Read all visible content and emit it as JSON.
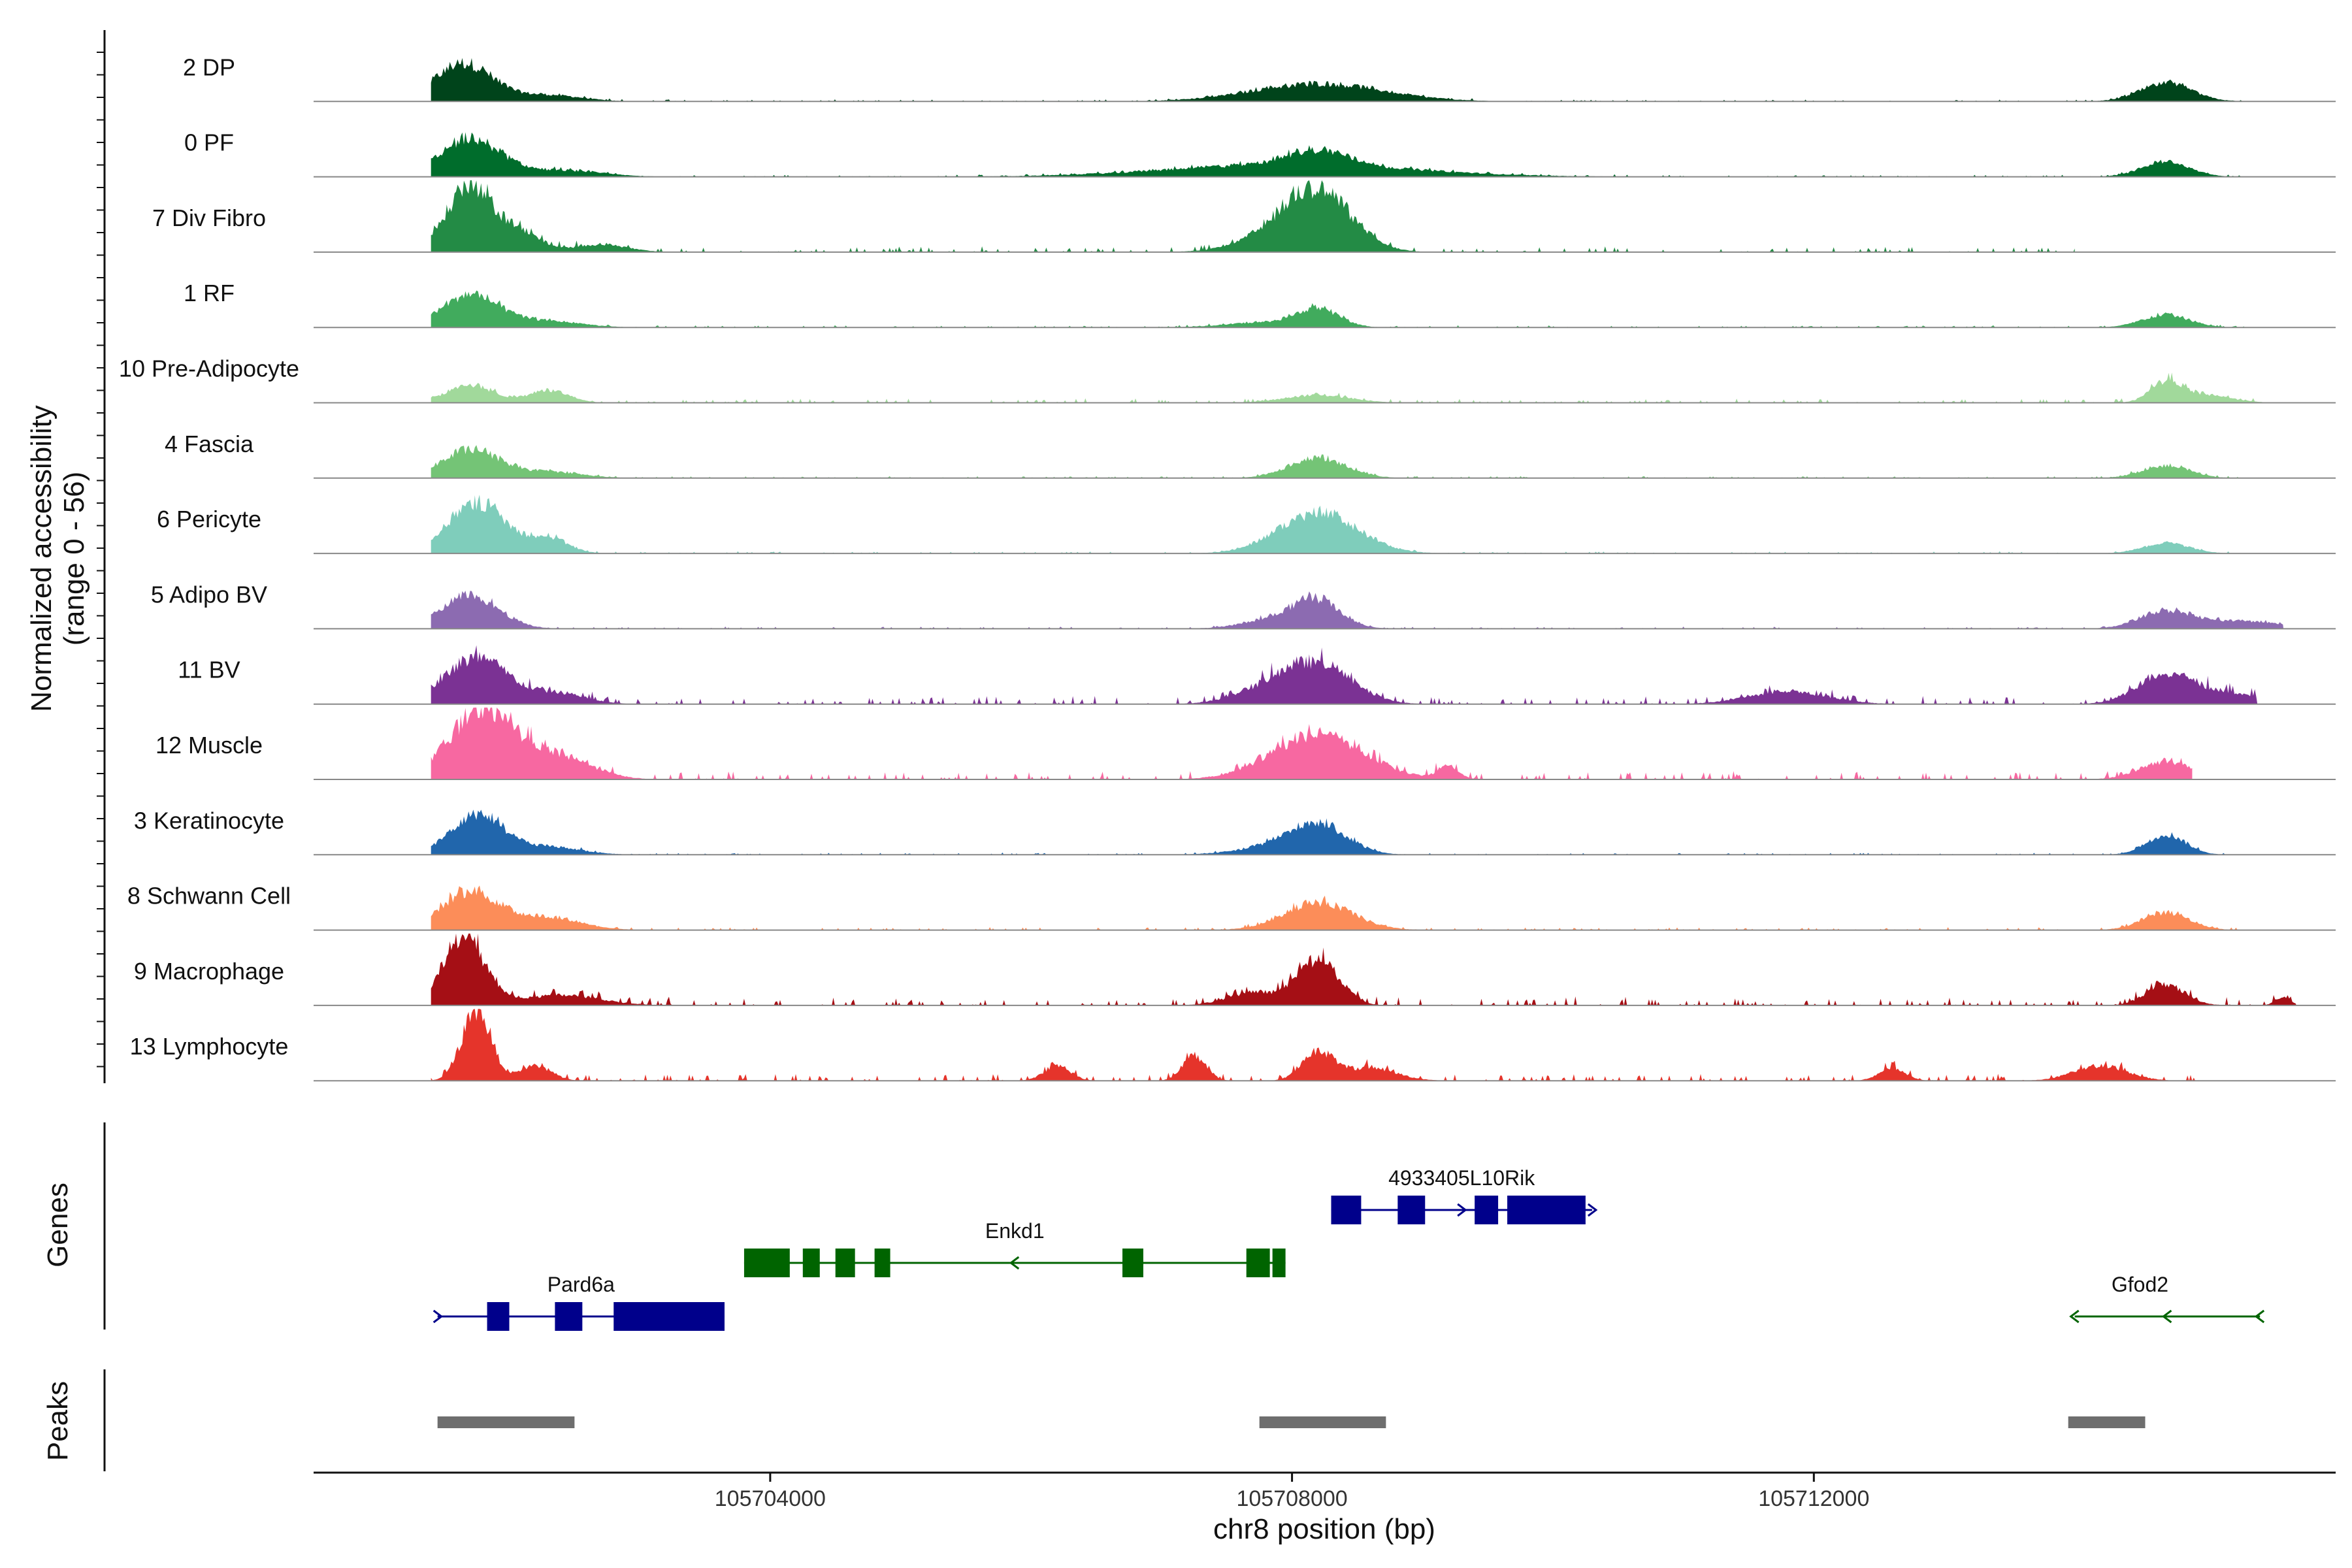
{
  "chart_data": {
    "type": "area",
    "title": "",
    "ylabel_line1": "Normalized accessibility",
    "ylabel_line2": "(range 0 - 56)",
    "y_range": [
      0,
      56
    ],
    "xlabel": "chr8 position (bp)",
    "x_range": [
      105700500,
      105716000
    ],
    "x_ticks": [
      105704000,
      105708000,
      105712000
    ],
    "x_tick_labels": [
      "105704000",
      "105708000",
      "105712000"
    ],
    "tracks": [
      {
        "name": "2 DP",
        "color": "#00441b",
        "peaks": [
          [
            105701650,
            30,
            220
          ],
          [
            105702300,
            5,
            250
          ],
          [
            105708200,
            14,
            500
          ],
          [
            105714700,
            14,
            200
          ]
        ],
        "noise": 1.5,
        "spread": [
          105701400,
          105715300
        ]
      },
      {
        "name": "0 PF",
        "color": "#006d2c",
        "peaks": [
          [
            105701700,
            30,
            230
          ],
          [
            105702400,
            5,
            300
          ],
          [
            105708000,
            10,
            900
          ],
          [
            105708200,
            12,
            220
          ],
          [
            105714700,
            12,
            180
          ]
        ],
        "noise": 1.5,
        "spread": [
          105701400,
          105715400
        ]
      },
      {
        "name": "7 Div Fibro",
        "color": "#238b45",
        "peaks": [
          [
            105701700,
            52,
            180
          ],
          [
            105702100,
            14,
            150
          ],
          [
            105702700,
            6,
            200
          ],
          [
            105708200,
            44,
            260
          ],
          [
            105707900,
            10,
            300
          ]
        ],
        "noise": 4,
        "spread": [
          105701400,
          105714000
        ]
      },
      {
        "name": "1 RF",
        "color": "#41ab5d",
        "peaks": [
          [
            105701700,
            26,
            220
          ],
          [
            105702300,
            5,
            250
          ],
          [
            105708200,
            14,
            160
          ],
          [
            105707800,
            4,
            300
          ],
          [
            105714700,
            10,
            180
          ]
        ],
        "noise": 1.5,
        "spread": [
          105701400,
          105715300
        ]
      },
      {
        "name": "10 Pre-Adipocyte",
        "color": "#a1d99b",
        "peaks": [
          [
            105701700,
            14,
            180
          ],
          [
            105702300,
            10,
            150
          ],
          [
            105708200,
            6,
            250
          ],
          [
            105714700,
            16,
            120
          ],
          [
            105715000,
            6,
            200
          ]
        ],
        "noise": 3,
        "spread": [
          105701400,
          105715600
        ]
      },
      {
        "name": "4 Fascia",
        "color": "#74c476",
        "peaks": [
          [
            105701700,
            22,
            220
          ],
          [
            105702300,
            5,
            250
          ],
          [
            105708200,
            16,
            220
          ],
          [
            105714700,
            10,
            180
          ]
        ],
        "noise": 1.5,
        "spread": [
          105701400,
          105715300
        ]
      },
      {
        "name": "6 Pericyte",
        "color": "#7fcdbb",
        "peaks": [
          [
            105701750,
            40,
            220
          ],
          [
            105702300,
            12,
            150
          ],
          [
            105708200,
            32,
            300
          ],
          [
            105714700,
            8,
            180
          ]
        ],
        "noise": 1.5,
        "spread": [
          105701400,
          105715300
        ]
      },
      {
        "name": "5 Adipo BV",
        "color": "#8c6bb1",
        "peaks": [
          [
            105701700,
            26,
            220
          ],
          [
            105708200,
            20,
            180
          ],
          [
            105707900,
            8,
            250
          ],
          [
            105714700,
            14,
            200
          ],
          [
            105715300,
            6,
            300
          ]
        ],
        "noise": 1.5,
        "spread": [
          105701400,
          105715600
        ]
      },
      {
        "name": "11 BV",
        "color": "#7b3294",
        "peaks": [
          [
            105701750,
            36,
            250
          ],
          [
            105702400,
            8,
            200
          ],
          [
            105708200,
            30,
            260
          ],
          [
            105707800,
            10,
            250
          ],
          [
            105714700,
            22,
            220
          ],
          [
            105715200,
            8,
            250
          ],
          [
            105711800,
            10,
            300
          ]
        ],
        "noise": 6,
        "spread": [
          105701400,
          105715400
        ]
      },
      {
        "name": "12 Muscle",
        "color": "#f768a1",
        "peaks": [
          [
            105701800,
            54,
            260
          ],
          [
            105702400,
            16,
            250
          ],
          [
            105708200,
            36,
            350
          ],
          [
            105709200,
            10,
            80
          ],
          [
            105714700,
            14,
            200
          ]
        ],
        "noise": 6,
        "spread": [
          105701400,
          105714900
        ]
      },
      {
        "name": "3 Keratinocyte",
        "color": "#2166ac",
        "peaks": [
          [
            105701750,
            32,
            200
          ],
          [
            105702300,
            6,
            250
          ],
          [
            105708200,
            22,
            220
          ],
          [
            105707900,
            6,
            300
          ],
          [
            105714700,
            16,
            150
          ]
        ],
        "noise": 1.5,
        "spread": [
          105701400,
          105715300
        ]
      },
      {
        "name": "8 Schwann Cell",
        "color": "#fc8d59",
        "peaks": [
          [
            105701700,
            30,
            220
          ],
          [
            105702300,
            10,
            250
          ],
          [
            105708200,
            22,
            260
          ],
          [
            105714700,
            14,
            180
          ]
        ],
        "noise": 2,
        "spread": [
          105701400,
          105715300
        ]
      },
      {
        "name": "9 Macrophage",
        "color": "#a50f15",
        "peaks": [
          [
            105701650,
            54,
            160
          ],
          [
            105702400,
            8,
            300
          ],
          [
            105708200,
            36,
            160
          ],
          [
            105707700,
            10,
            200
          ],
          [
            105714700,
            16,
            150
          ],
          [
            105715600,
            6,
            60
          ]
        ],
        "noise": 6,
        "spread": [
          105701400,
          105715700
        ]
      },
      {
        "name": "13 Lymphocyte",
        "color": "#e5342b",
        "peaks": [
          [
            105701750,
            56,
            110
          ],
          [
            105702200,
            12,
            120
          ],
          [
            105706200,
            12,
            100
          ],
          [
            105707250,
            20,
            90
          ],
          [
            105708200,
            22,
            120
          ],
          [
            105708600,
            10,
            200
          ],
          [
            105712600,
            10,
            100
          ],
          [
            105714200,
            12,
            200
          ]
        ],
        "noise": 5,
        "spread": [
          105701400,
          105715000
        ]
      }
    ],
    "genes_label": "Genes",
    "genes": [
      {
        "name": "Pard6a",
        "color": "#00008b",
        "strand": "+",
        "start": 105701450,
        "end": 105703650,
        "row": 2,
        "exons": [
          [
            105701830,
            105702000
          ],
          [
            105702350,
            105702560
          ],
          [
            105702800,
            105703650
          ]
        ]
      },
      {
        "name": "Enkd1",
        "color": "#006400",
        "strand": "-",
        "start": 105703800,
        "end": 105707950,
        "row": 1,
        "exons": [
          [
            105703800,
            105704150
          ],
          [
            105704250,
            105704380
          ],
          [
            105704500,
            105704650
          ],
          [
            105704800,
            105704920
          ],
          [
            105706700,
            105706860
          ],
          [
            105707650,
            105707830
          ],
          [
            105707850,
            105707950
          ]
        ]
      },
      {
        "name": "4933405L10Rik",
        "color": "#00008b",
        "strand": "+",
        "start": 105708300,
        "end": 105710300,
        "row": 0,
        "exons": [
          [
            105708300,
            105708530
          ],
          [
            105708810,
            105709020
          ],
          [
            105709400,
            105709580
          ],
          [
            105709650,
            105710250
          ]
        ]
      },
      {
        "name": "Gfod2",
        "color": "#006400",
        "strand": "-",
        "start": 105714000,
        "end": 105715420,
        "row": 2,
        "exons": []
      }
    ],
    "peaks_label": "Peaks",
    "peak_regions": [
      [
        105701450,
        105702500
      ],
      [
        105707750,
        105708720
      ],
      [
        105713950,
        105714540
      ]
    ],
    "peak_color": "#6e6e6e"
  }
}
